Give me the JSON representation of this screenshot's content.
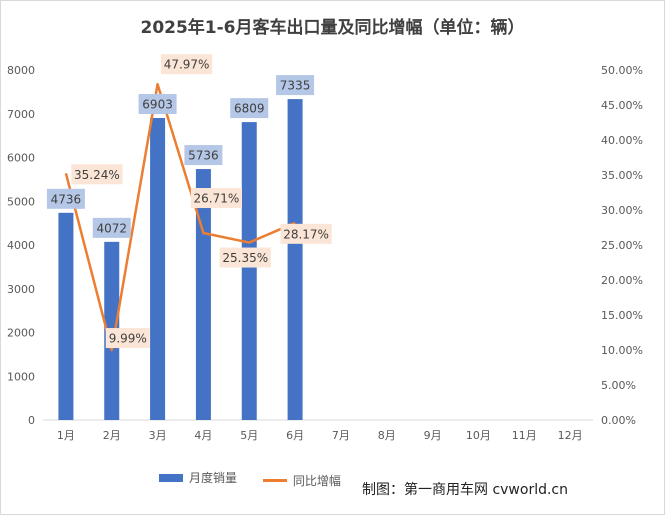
{
  "chart_data": {
    "type": "bar",
    "title": "2025年1-6月客车出口量及同比增幅（单位：辆）",
    "categories": [
      "1月",
      "2月",
      "3月",
      "4月",
      "5月",
      "6月",
      "7月",
      "8月",
      "9月",
      "10月",
      "11月",
      "12月"
    ],
    "series": [
      {
        "name": "月度销量",
        "type": "bar",
        "axis": "left",
        "values": [
          4736,
          4072,
          6903,
          5736,
          6809,
          7335,
          null,
          null,
          null,
          null,
          null,
          null
        ]
      },
      {
        "name": "同比增幅",
        "type": "line",
        "axis": "right",
        "values": [
          35.24,
          9.99,
          47.97,
          26.71,
          25.35,
          28.17,
          null,
          null,
          null,
          null,
          null,
          null
        ]
      }
    ],
    "bar_labels": [
      "4736",
      "4072",
      "6903",
      "5736",
      "6809",
      "7335"
    ],
    "line_labels": [
      "35.24%",
      "9.99%",
      "47.97%",
      "26.71%",
      "25.35%",
      "28.17%"
    ],
    "ylim_left": [
      0,
      8000
    ],
    "ylim_right": [
      0,
      50
    ],
    "yticks_left": [
      "0",
      "1000",
      "2000",
      "3000",
      "4000",
      "5000",
      "6000",
      "7000",
      "8000"
    ],
    "yticks_right": [
      "0.00%",
      "5.00%",
      "10.00%",
      "15.00%",
      "20.00%",
      "25.00%",
      "30.00%",
      "35.00%",
      "40.00%",
      "45.00%",
      "50.00%"
    ],
    "grid": false,
    "legend_position": "bottom",
    "colors": {
      "bar": "#4472c4",
      "line": "#ed7d31",
      "bar_label_bg": "#b4c7e7",
      "line_label_bg": "#fbe5d6"
    }
  },
  "legend": {
    "bar": "月度销量",
    "line": "同比增幅"
  },
  "source": "制图：第一商用车网 cvworld.cn"
}
